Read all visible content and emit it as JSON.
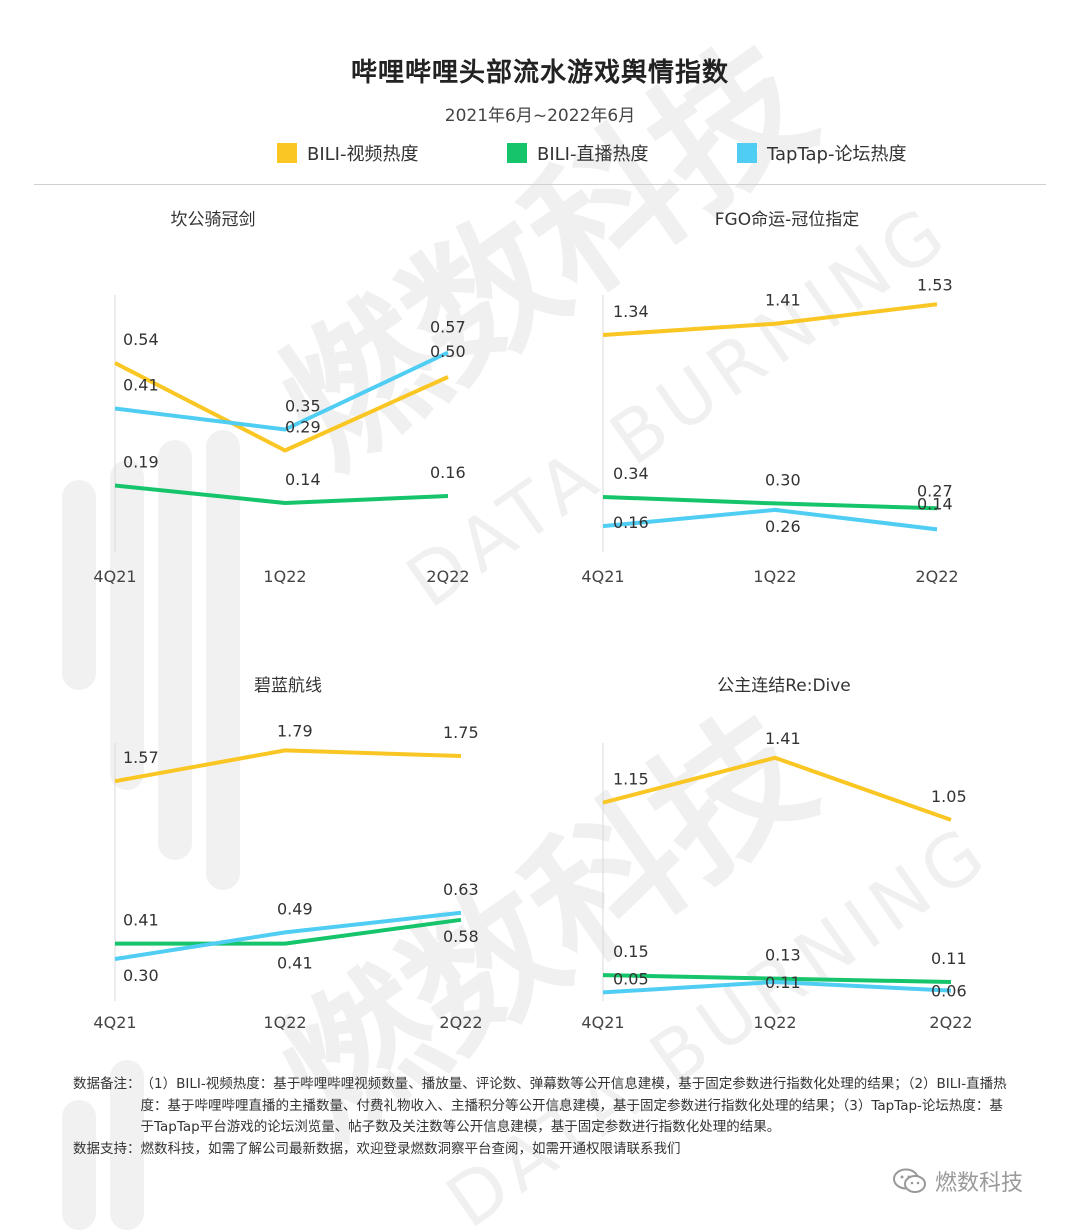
{
  "title": "哔哩哔哩头部流水游戏舆情指数",
  "subtitle": "2021年6月~2022年6月",
  "legend": [
    {
      "label": "BILI-视频热度",
      "color": "#F9C623"
    },
    {
      "label": "BILI-直播热度",
      "color": "#15C46B"
    },
    {
      "label": "TapTap-论坛热度",
      "color": "#4FCDF3"
    }
  ],
  "watermark": {
    "text": "燃数科技",
    "sub": "DATA BURNING"
  },
  "chart_data": [
    {
      "type": "line",
      "title": "坎公骑冠剑",
      "categories": [
        "4Q21",
        "1Q22",
        "2Q22"
      ],
      "series": [
        {
          "name": "BILI-视频热度",
          "values": [
            0.54,
            0.29,
            0.5
          ],
          "labels": [
            "0.54",
            "0.29",
            "0.50"
          ]
        },
        {
          "name": "BILI-直播热度",
          "values": [
            0.19,
            0.14,
            0.16
          ],
          "labels": [
            "0.19",
            "0.14",
            "0.16"
          ]
        },
        {
          "name": "TapTap-论坛热度",
          "values": [
            0.41,
            0.35,
            0.57
          ],
          "labels": [
            "0.41",
            "0.35",
            "0.57"
          ]
        }
      ]
    },
    {
      "type": "line",
      "title": "FGO命运-冠位指定",
      "categories": [
        "4Q21",
        "1Q22",
        "2Q22"
      ],
      "series": [
        {
          "name": "BILI-视频热度",
          "values": [
            1.34,
            1.41,
            1.53
          ],
          "labels": [
            "1.34",
            "1.41",
            "1.53"
          ]
        },
        {
          "name": "BILI-直播热度",
          "values": [
            0.34,
            0.3,
            0.27
          ],
          "labels": [
            "0.34",
            "0.30",
            "0.27"
          ]
        },
        {
          "name": "TapTap-论坛热度",
          "values": [
            0.16,
            0.26,
            0.14
          ],
          "labels": [
            "0.16",
            "0.26",
            "0.14"
          ]
        }
      ]
    },
    {
      "type": "line",
      "title": "碧蓝航线",
      "categories": [
        "4Q21",
        "1Q22",
        "2Q22"
      ],
      "series": [
        {
          "name": "BILI-视频热度",
          "values": [
            1.57,
            1.79,
            1.75
          ],
          "labels": [
            "1.57",
            "1.79",
            "1.75"
          ]
        },
        {
          "name": "BILI-直播热度",
          "values": [
            0.41,
            0.41,
            0.58
          ],
          "labels": [
            "0.41",
            "0.41",
            "0.58"
          ]
        },
        {
          "name": "TapTap-论坛热度",
          "values": [
            0.3,
            0.49,
            0.63
          ],
          "labels": [
            "0.30",
            "0.49",
            "0.63"
          ]
        }
      ]
    },
    {
      "type": "line",
      "title": "公主连结Re:Dive",
      "categories": [
        "4Q21",
        "1Q22",
        "2Q22"
      ],
      "series": [
        {
          "name": "BILI-视频热度",
          "values": [
            1.15,
            1.41,
            1.05
          ],
          "labels": [
            "1.15",
            "1.41",
            "1.05"
          ]
        },
        {
          "name": "BILI-直播热度",
          "values": [
            0.15,
            0.13,
            0.11
          ],
          "labels": [
            "0.15",
            "0.13",
            "0.11"
          ]
        },
        {
          "name": "TapTap-论坛热度",
          "values": [
            0.05,
            0.11,
            0.06
          ],
          "labels": [
            "0.05",
            "0.11",
            "0.06"
          ]
        }
      ]
    }
  ],
  "notes": [
    {
      "label": "数据备注：",
      "text": "（1）BILI-视频热度：基于哔哩哔哩视频数量、播放量、评论数、弹幕数等公开信息建模，基于固定参数进行指数化处理的结果；（2）BILI-直播热度：基于哔哩哔哩直播的主播数量、付费礼物收入、主播积分等公开信息建模，基于固定参数进行指数化处理的结果；（3）TapTap-论坛热度：基于TapTap平台游戏的论坛浏览量、帖子数及关注数等公开信息建模，基于固定参数进行指数化处理的结果。"
    },
    {
      "label": "数据支持：",
      "text": "燃数科技，如需了解公司最新数据，欢迎登录燃数洞察平台查阅，如需开通权限请联系我们"
    }
  ],
  "brand": "燃数科技"
}
